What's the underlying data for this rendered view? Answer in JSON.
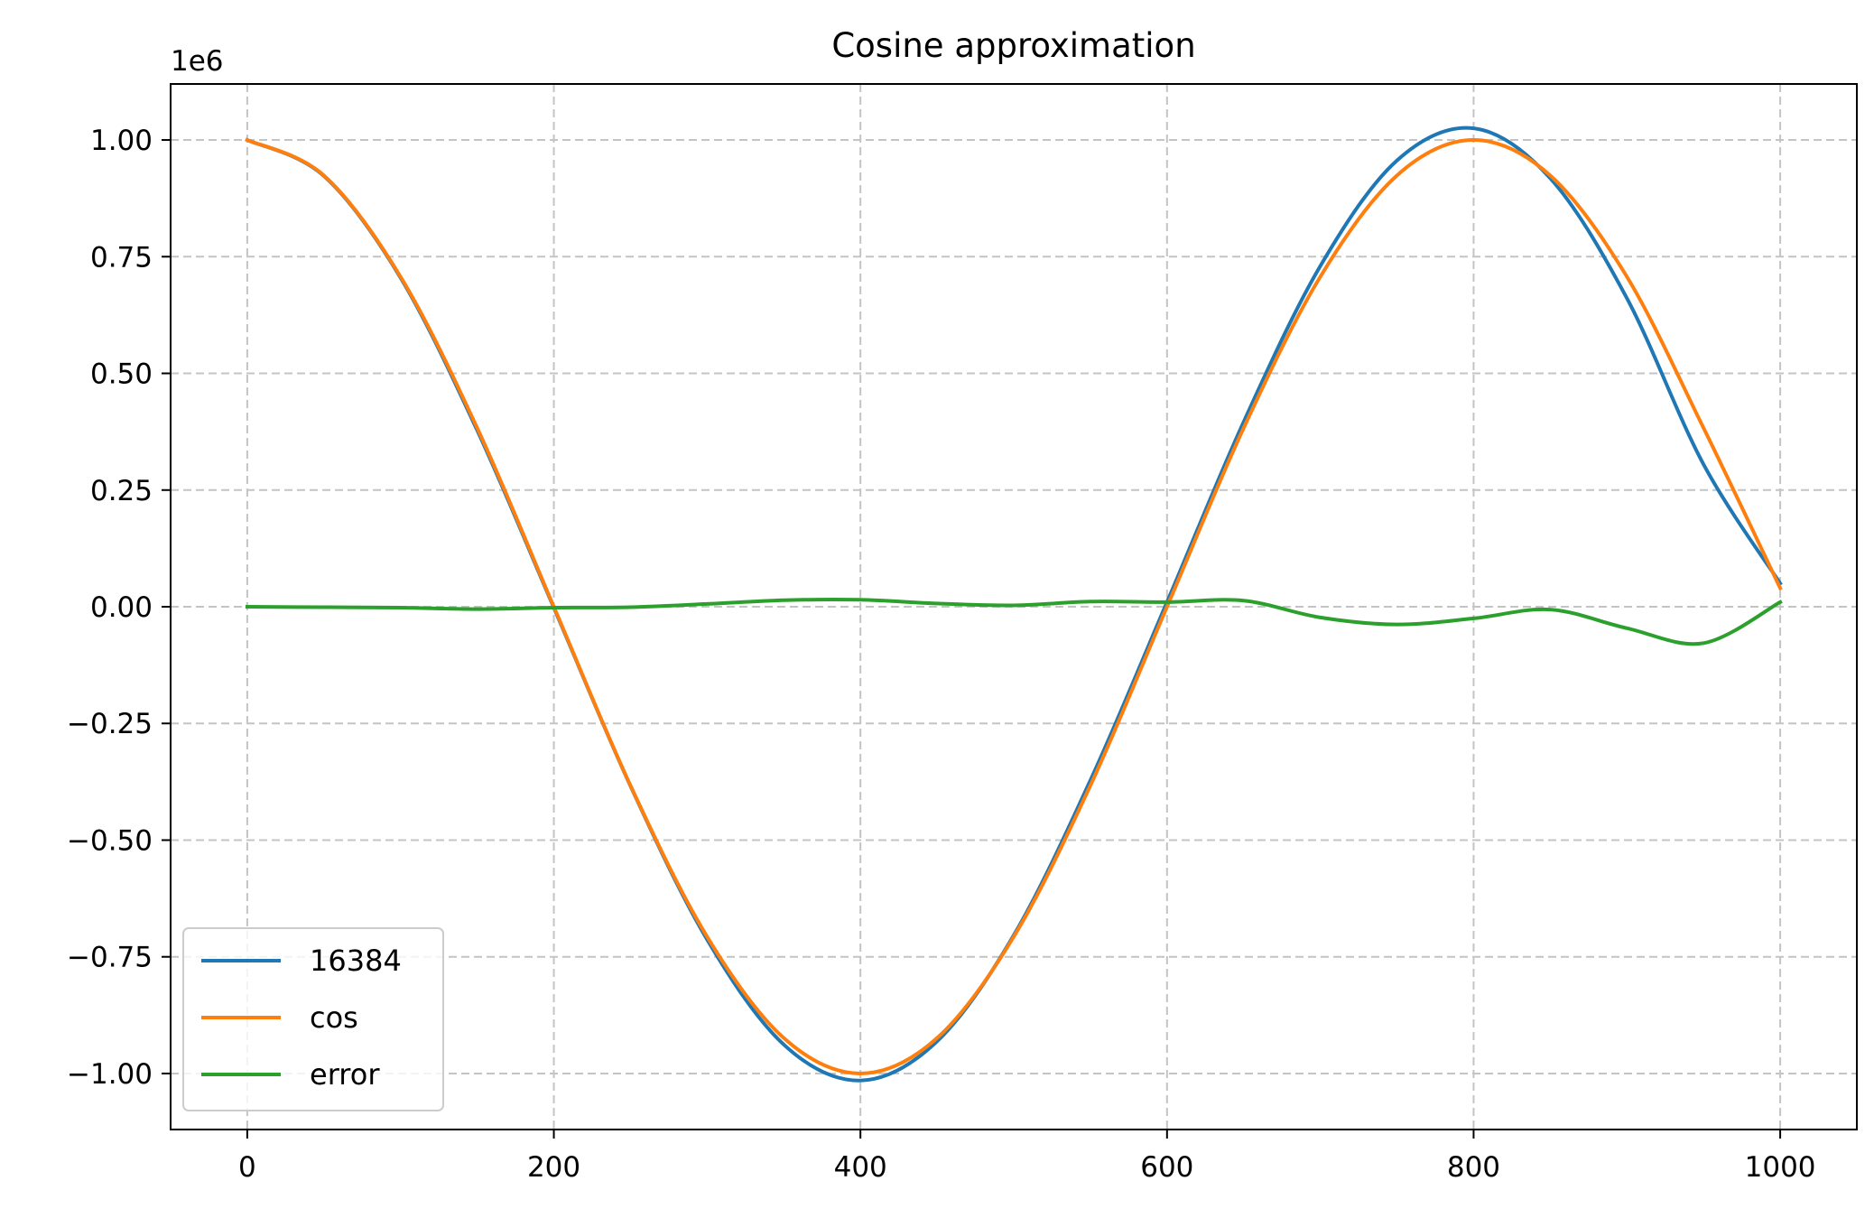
{
  "chart_data": {
    "type": "line",
    "title": "Cosine approximation",
    "xlabel": "",
    "ylabel": "",
    "y_offset_label": "1e6",
    "y_scale": 1000000,
    "xlim": [
      -50,
      1050
    ],
    "ylim": [
      -1120000,
      1120000
    ],
    "x_ticks": [
      0,
      200,
      400,
      600,
      800,
      1000
    ],
    "x_tick_labels": [
      "0",
      "200",
      "400",
      "600",
      "800",
      "1000"
    ],
    "y_ticks": [
      1000000,
      750000,
      500000,
      250000,
      0,
      -250000,
      -500000,
      -750000,
      -1000000
    ],
    "y_tick_labels": [
      "1.00",
      "0.75",
      "0.50",
      "0.25",
      "0.00",
      "−0.25",
      "−0.50",
      "−0.75",
      "−1.00"
    ],
    "grid": true,
    "grid_style": "dashed",
    "legend_position": "lower-left",
    "x": [
      0,
      50,
      100,
      150,
      200,
      250,
      300,
      350,
      400,
      450,
      500,
      550,
      600,
      650,
      700,
      750,
      800,
      850,
      900,
      950,
      1000
    ],
    "series": [
      {
        "name": "16384",
        "color": "#1f77b4",
        "values": [
          1000000,
          923000,
          705000,
          378000,
          -2000,
          -384000,
          -713000,
          -938000,
          -1015000,
          -931000,
          -704000,
          -372000,
          10000,
          396000,
          730000,
          956000,
          1025000,
          918000,
          661000,
          305000,
          50000
        ]
      },
      {
        "name": "cos",
        "color": "#ff7f0e",
        "values": [
          1000000,
          924000,
          707000,
          383000,
          0,
          -383000,
          -707000,
          -924000,
          -1000000,
          -924000,
          -707000,
          -383000,
          0,
          383000,
          707000,
          924000,
          1000000,
          924000,
          707000,
          383000,
          40000
        ]
      },
      {
        "name": "error",
        "color": "#2ca02c",
        "values": [
          0,
          -1000,
          -2000,
          -5000,
          -2000,
          -1000,
          6000,
          14000,
          15000,
          7000,
          3000,
          11000,
          10000,
          13000,
          -23000,
          -38000,
          -25000,
          -6000,
          -46000,
          -78000,
          10000
        ]
      }
    ]
  }
}
